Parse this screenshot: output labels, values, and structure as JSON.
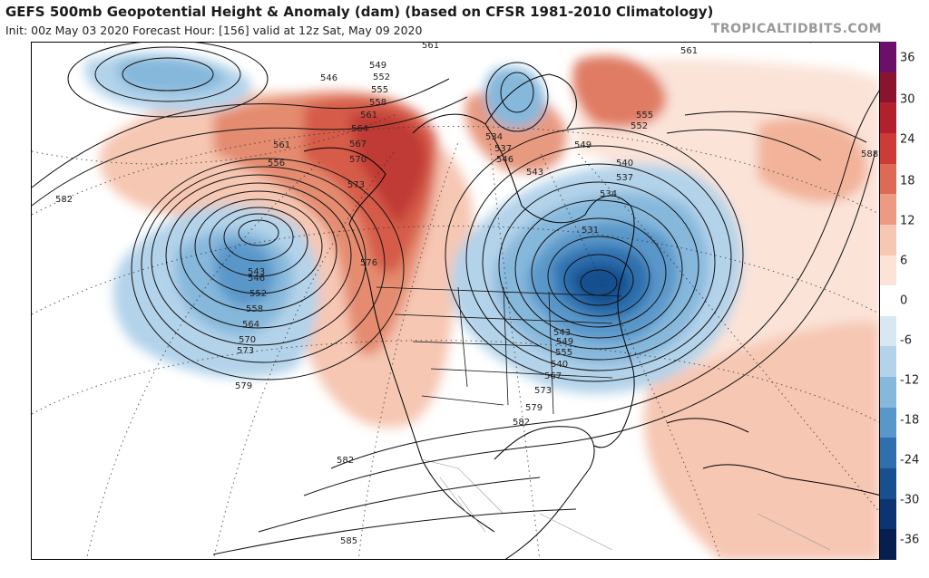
{
  "header": {
    "title": "GEFS 500mb Geopotential Height & Anomaly (dam) (based on CFSR 1981-2010 Climatology)",
    "subtitle": "Init: 00z May 03 2020   Forecast Hour: [156]   valid at 12z Sat, May 09 2020",
    "brand": "TROPICALTIDBITS.COM"
  },
  "colorbar": {
    "labels": [
      "36",
      "30",
      "24",
      "18",
      "12",
      "6",
      "0",
      "-6",
      "-12",
      "-18",
      "-24",
      "-30",
      "-36"
    ],
    "colors": [
      "#6b0f6b",
      "#8a1430",
      "#b2202e",
      "#cc3b36",
      "#dd6a55",
      "#ec9a82",
      "#f6c7b3",
      "#fbe3d8",
      "#ffffff",
      "#d7e8f3",
      "#b3d3ea",
      "#86b8dc",
      "#5a97c9",
      "#2f6fae",
      "#18508f",
      "#0c3470",
      "#061f4f"
    ]
  },
  "contour_labels": {
    "c561a": "561",
    "c561b": "561",
    "c546": "546",
    "c549": "549",
    "c552a": "552",
    "c555a": "555",
    "c558a": "558",
    "c561c": "561",
    "c564a": "564",
    "c567": "567",
    "c570a": "570",
    "c573a": "573",
    "c556": "556",
    "c582a": "582",
    "c543a": "543",
    "c546b": "546",
    "c552b": "552",
    "c558b": "558",
    "c564b": "564",
    "c570b": "570",
    "c573b": "573",
    "c579a": "579",
    "c576": "576",
    "c534": "534",
    "c537a": "537",
    "c540a": "540",
    "c543b": "543",
    "c546c": "546",
    "c549b": "549",
    "c555b": "555",
    "c552c": "552",
    "c540b": "540",
    "c537b": "537",
    "c534b": "534",
    "c531": "531",
    "c543c": "543",
    "c549c": "549",
    "c555c": "555",
    "c561d": "561",
    "c567b": "567",
    "c573c": "573",
    "c579b": "579",
    "c582b": "582",
    "c582c": "582",
    "c585": "585",
    "c588": "588"
  }
}
